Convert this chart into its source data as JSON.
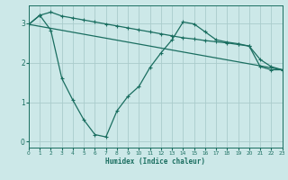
{
  "xlabel": "Humidex (Indice chaleur)",
  "bg_color": "#cce8e8",
  "grid_color": "#aacccc",
  "line_color": "#1a6e60",
  "x_min": 0,
  "x_max": 23,
  "y_min": -0.15,
  "y_max": 3.45,
  "yticks": [
    0,
    1,
    2,
    3
  ],
  "xticks": [
    0,
    1,
    2,
    3,
    4,
    5,
    6,
    7,
    8,
    9,
    10,
    11,
    12,
    13,
    14,
    15,
    16,
    17,
    18,
    19,
    20,
    21,
    22,
    23
  ],
  "line1_x": [
    0,
    1,
    2,
    3,
    4,
    5,
    6,
    7,
    8,
    9,
    10,
    11,
    12,
    13,
    14,
    15,
    16,
    17,
    18,
    19,
    20,
    21,
    22,
    23
  ],
  "line1_y": [
    2.97,
    3.2,
    2.82,
    1.6,
    1.05,
    0.55,
    0.18,
    0.12,
    0.78,
    1.15,
    1.4,
    1.88,
    2.25,
    2.58,
    3.03,
    2.98,
    2.78,
    2.58,
    2.52,
    2.48,
    2.42,
    1.9,
    1.82,
    1.82
  ],
  "line2_x": [
    0,
    1,
    2,
    3,
    4,
    5,
    6,
    7,
    8,
    9,
    10,
    11,
    12,
    13,
    14,
    15,
    16,
    17,
    18,
    19,
    20,
    21,
    22,
    23
  ],
  "line2_y": [
    2.97,
    3.2,
    3.28,
    3.18,
    3.13,
    3.08,
    3.03,
    2.98,
    2.93,
    2.88,
    2.83,
    2.78,
    2.73,
    2.68,
    2.63,
    2.6,
    2.56,
    2.53,
    2.5,
    2.46,
    2.42,
    2.08,
    1.9,
    1.82
  ],
  "line3_x": [
    0,
    23
  ],
  "line3_y": [
    2.97,
    1.82
  ]
}
